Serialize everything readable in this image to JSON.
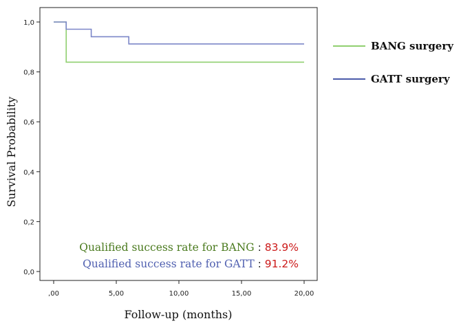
{
  "chart_data": {
    "type": "line",
    "step": true,
    "title": "",
    "xlabel": "Follow-up (months)",
    "ylabel": "Survival Probability",
    "xlim": [
      0,
      20
    ],
    "ylim": [
      0,
      1
    ],
    "x_ticks": [
      {
        "value": 0,
        "label": ",00"
      },
      {
        "value": 5,
        "label": "5,00"
      },
      {
        "value": 10,
        "label": "10,00"
      },
      {
        "value": 15,
        "label": "15,00"
      },
      {
        "value": 20,
        "label": "20,00"
      }
    ],
    "y_ticks": [
      {
        "value": 0,
        "label": "0,0"
      },
      {
        "value": 0.2,
        "label": "0,2"
      },
      {
        "value": 0.4,
        "label": "0,4"
      },
      {
        "value": 0.6,
        "label": "0,6"
      },
      {
        "value": 0.8,
        "label": "0,8"
      },
      {
        "value": 1.0,
        "label": "1,0"
      }
    ],
    "grid": false,
    "legend_position": "outside-right",
    "series": [
      {
        "name": "BANG surgery",
        "color": "#8fcf6f",
        "points": [
          [
            0,
            1.0
          ],
          [
            1,
            1.0
          ],
          [
            1,
            0.839
          ],
          [
            20,
            0.839
          ]
        ]
      },
      {
        "name": "GATT surgery",
        "color": "#7b86c8",
        "legend_color": "#4a5aaa",
        "points": [
          [
            0,
            1.0
          ],
          [
            1,
            1.0
          ],
          [
            1,
            0.971
          ],
          [
            3,
            0.971
          ],
          [
            3,
            0.941
          ],
          [
            6,
            0.941
          ],
          [
            6,
            0.912
          ],
          [
            20,
            0.912
          ]
        ]
      }
    ],
    "annotations": [
      {
        "label": "Qualified success rate for BANG",
        "separator": " : ",
        "value": "83.9%",
        "label_color": "#4a7a1e",
        "value_color": "#cc1a1a"
      },
      {
        "label": "Qualified success rate for GATT",
        "separator": " : ",
        "value": "91.2%",
        "label_color": "#5060b0",
        "value_color": "#cc1a1a"
      }
    ]
  }
}
